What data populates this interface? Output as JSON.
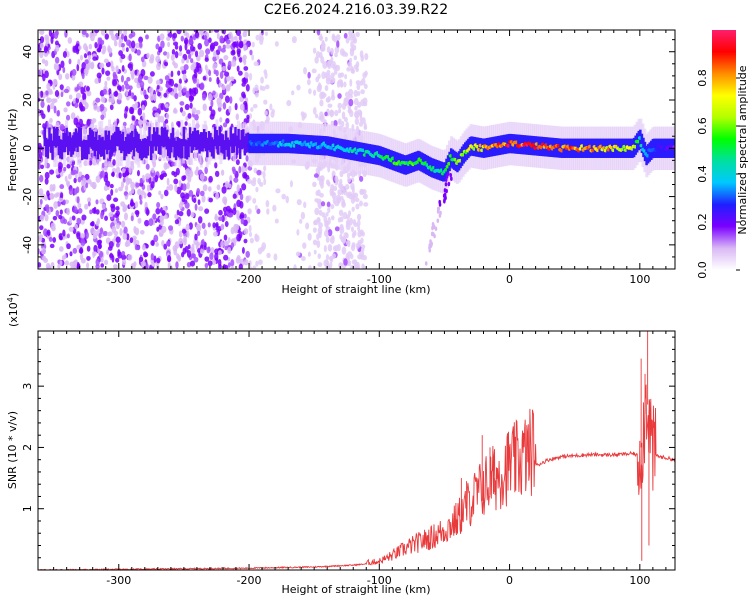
{
  "title": "C2E6.2024.216.03.39.R22",
  "colors": {
    "snr_line": "#e8393b",
    "ridge_core": "#ff2a2a"
  },
  "chart_data": [
    {
      "type": "heatmap",
      "name": "spectrogram",
      "xlabel": "Height of straight line (km)",
      "ylabel": "Frequency (Hz)",
      "xlim": [
        -362,
        127
      ],
      "ylim": [
        -50,
        49
      ],
      "xticks": [
        -300,
        -200,
        -100,
        0,
        100
      ],
      "yticks": [
        40,
        20,
        0,
        -20,
        -40
      ],
      "colorbar": {
        "label": "Normalized spectral amplitude",
        "range": [
          0,
          1
        ],
        "ticks": [
          "0.0",
          "0.2",
          "0.4",
          "0.6",
          "0.8"
        ],
        "colormap": [
          "#ffffff",
          "#d9b8f5",
          "#7a00ff",
          "#1f1fff",
          "#00c8ff",
          "#00e0a0",
          "#00ff00",
          "#b4ff00",
          "#ffff00",
          "#ff8c00",
          "#ff0000",
          "#ff1e6e"
        ]
      },
      "ridge": {
        "x": [
          -200,
          -170,
          -140,
          -120,
          -100,
          -90,
          -80,
          -70,
          -60,
          -50,
          -45,
          -40,
          -35,
          -30,
          -20,
          -10,
          0,
          20,
          40,
          60,
          80,
          95,
          100,
          105,
          110,
          127
        ],
        "y": [
          2,
          2,
          1,
          -1,
          -3,
          -5,
          -7,
          -5,
          -8,
          -10,
          -4,
          -6,
          -2,
          1,
          0,
          1,
          2,
          1,
          0,
          0,
          0,
          0,
          4,
          -3,
          0,
          0
        ],
        "amplitude": [
          0.3,
          0.4,
          0.4,
          0.45,
          0.5,
          0.55,
          0.6,
          0.55,
          0.5,
          0.5,
          0.6,
          0.6,
          0.65,
          0.75,
          0.8,
          0.9,
          0.95,
          0.95,
          0.9,
          0.85,
          0.8,
          0.7,
          0.5,
          0.4,
          0.3,
          0.2
        ]
      }
    },
    {
      "type": "line",
      "name": "snr",
      "xlabel": "Height of straight line (km)",
      "ylabel": "SNR (10 * v/v)",
      "y_multiplier": "(x10",
      "y_multiplier_exp": "4",
      "y_multiplier_close": ")",
      "xlim": [
        -362,
        127
      ],
      "ylim": [
        0,
        3.9
      ],
      "xticks": [
        -300,
        -200,
        -100,
        0,
        100
      ],
      "yticks": [
        1,
        2,
        3
      ],
      "envelope": {
        "x": [
          -362,
          -300,
          -250,
          -200,
          -150,
          -120,
          -100,
          -90,
          -80,
          -70,
          -60,
          -50,
          -40,
          -30,
          -20,
          -10,
          0,
          10,
          20,
          30,
          40,
          60,
          80,
          95,
          100,
          103,
          105,
          107,
          110,
          115,
          127
        ],
        "y": [
          0.0,
          0.01,
          0.02,
          0.03,
          0.05,
          0.08,
          0.12,
          0.2,
          0.3,
          0.38,
          0.45,
          0.55,
          0.7,
          0.95,
          1.15,
          1.3,
          1.45,
          1.55,
          1.7,
          1.8,
          1.85,
          1.88,
          1.88,
          1.9,
          1.85,
          2.3,
          2.8,
          2.6,
          1.9,
          1.85,
          1.8
        ]
      },
      "spikes": [
        {
          "x": -37,
          "y": 1.5
        },
        {
          "x": -33,
          "y": 1.45
        },
        {
          "x": -21,
          "y": 2.2
        },
        {
          "x": -15,
          "y": 2.0
        },
        {
          "x": -12,
          "y": 1.5
        },
        {
          "x": 101,
          "y": 3.45
        },
        {
          "x": 101.5,
          "y": 0.15
        },
        {
          "x": 104,
          "y": 3.2
        },
        {
          "x": 106,
          "y": 3.9
        },
        {
          "x": 107,
          "y": 0.4
        }
      ]
    }
  ]
}
